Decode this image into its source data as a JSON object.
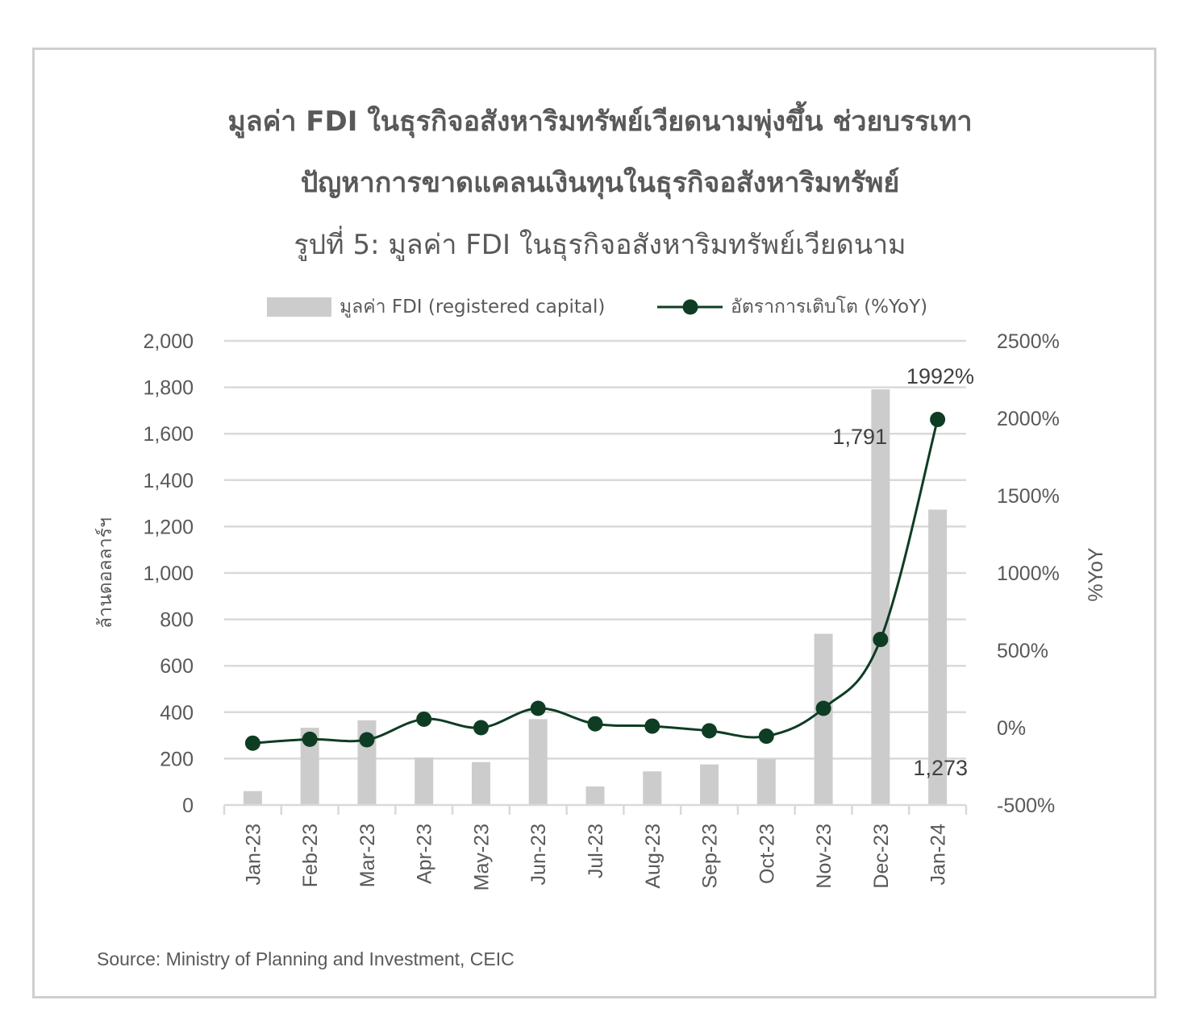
{
  "title_line1": "มูลค่า FDI ในธุรกิจอสังหาริมทรัพย์เวียดนามพุ่งขึ้น ช่วยบรรเทา",
  "title_line2": "ปัญหาการขาดแคลนเงินทุนในธุรกิจอสังหาริมทรัพย์",
  "figure_caption": "รูปที่ 5: มูลค่า FDI ในธุรกิจอสังหาริมทรัพย์เวียดนาม",
  "source": "Source: Ministry of Planning and Investment, CEIC",
  "colors": {
    "bar": "#cccccc",
    "line": "#0e3d24",
    "grid": "#d9d9d9",
    "text": "#595959"
  },
  "chart_data": {
    "type": "bar+line",
    "categories": [
      "Jan-23",
      "Feb-23",
      "Mar-23",
      "Apr-23",
      "May-23",
      "Jun-23",
      "Jul-23",
      "Aug-23",
      "Sep-23",
      "Oct-23",
      "Nov-23",
      "Dec-23",
      "Jan-24"
    ],
    "series": [
      {
        "name": "มูลค่า FDI (registered capital)",
        "type": "bar",
        "axis": "left",
        "values": [
          60,
          333,
          365,
          205,
          185,
          370,
          80,
          145,
          175,
          198,
          738,
          1791,
          1273
        ]
      },
      {
        "name": "อัตราการเติบโต (%YoY)",
        "type": "line",
        "axis": "right",
        "values": [
          -100,
          -75,
          -78,
          55,
          0,
          125,
          25,
          10,
          -20,
          -55,
          125,
          570,
          1992
        ]
      }
    ],
    "left_axis": {
      "label": "ล้านดอลลาร์ฯ",
      "min": 0,
      "max": 2000,
      "ticks": [
        0,
        200,
        400,
        600,
        800,
        1000,
        1200,
        1400,
        1600,
        1800,
        2000
      ],
      "tick_labels": [
        "0",
        "200",
        "400",
        "600",
        "800",
        "1,000",
        "1,200",
        "1,400",
        "1,600",
        "1,800",
        "2,000"
      ]
    },
    "right_axis": {
      "label": "%YoY",
      "min": -500,
      "max": 2500,
      "ticks": [
        -500,
        0,
        500,
        1000,
        1500,
        2000,
        2500
      ],
      "tick_labels": [
        "-500%",
        "0%",
        "500%",
        "1000%",
        "1500%",
        "2000%",
        "2500%"
      ]
    },
    "data_labels": {
      "dec23_bar": "1,791",
      "jan24_bar": "1,273",
      "jan24_line": "1992%"
    },
    "legend": {
      "position": "top",
      "bar_label": "มูลค่า FDI (registered capital)",
      "line_label": "อัตราการเติบโต (%YoY)"
    },
    "grid": true
  }
}
